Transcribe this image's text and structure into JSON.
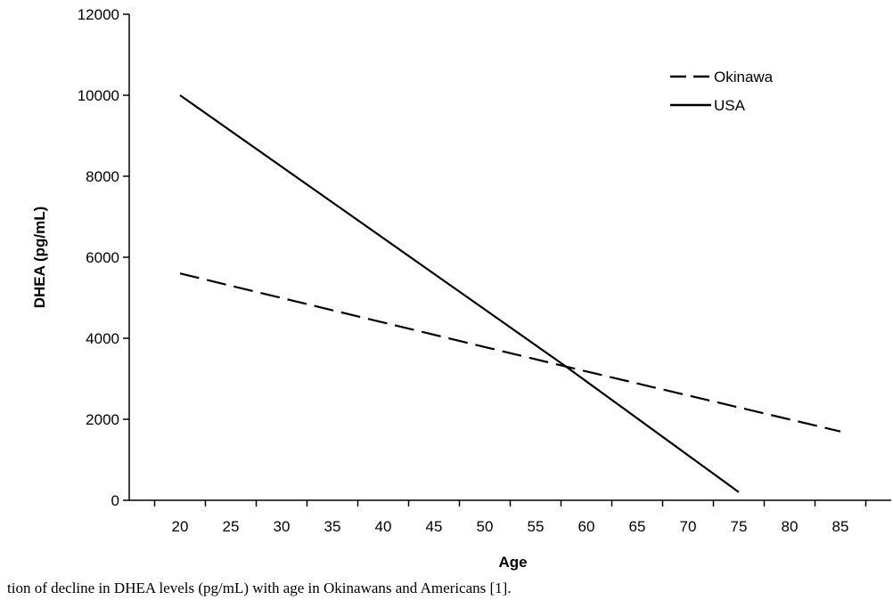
{
  "chart_data": {
    "type": "line",
    "title": "",
    "xlabel": "Age",
    "ylabel": "DHEA (pg/mL)",
    "xlim": [
      15,
      90
    ],
    "ylim": [
      0,
      12000
    ],
    "x_ticks": [
      "20",
      "25",
      "30",
      "35",
      "40",
      "45",
      "50",
      "55",
      "60",
      "65",
      "70",
      "75",
      "80",
      "85"
    ],
    "y_ticks": [
      "0",
      "2000",
      "4000",
      "6000",
      "8000",
      "10000",
      "12000"
    ],
    "grid": false,
    "legend_position": "top-right",
    "series": [
      {
        "name": "Okinawa",
        "style": "dashed",
        "color": "#000000",
        "points": [
          [
            20,
            5600
          ],
          [
            58,
            3300
          ],
          [
            85,
            1700
          ]
        ]
      },
      {
        "name": "USA",
        "style": "solid",
        "color": "#000000",
        "points": [
          [
            20,
            10000
          ],
          [
            58,
            3300
          ],
          [
            75,
            200
          ]
        ]
      }
    ]
  },
  "caption": "tion of decline in DHEA levels (pg/mL) with age in Okinawans and Americans [1]."
}
